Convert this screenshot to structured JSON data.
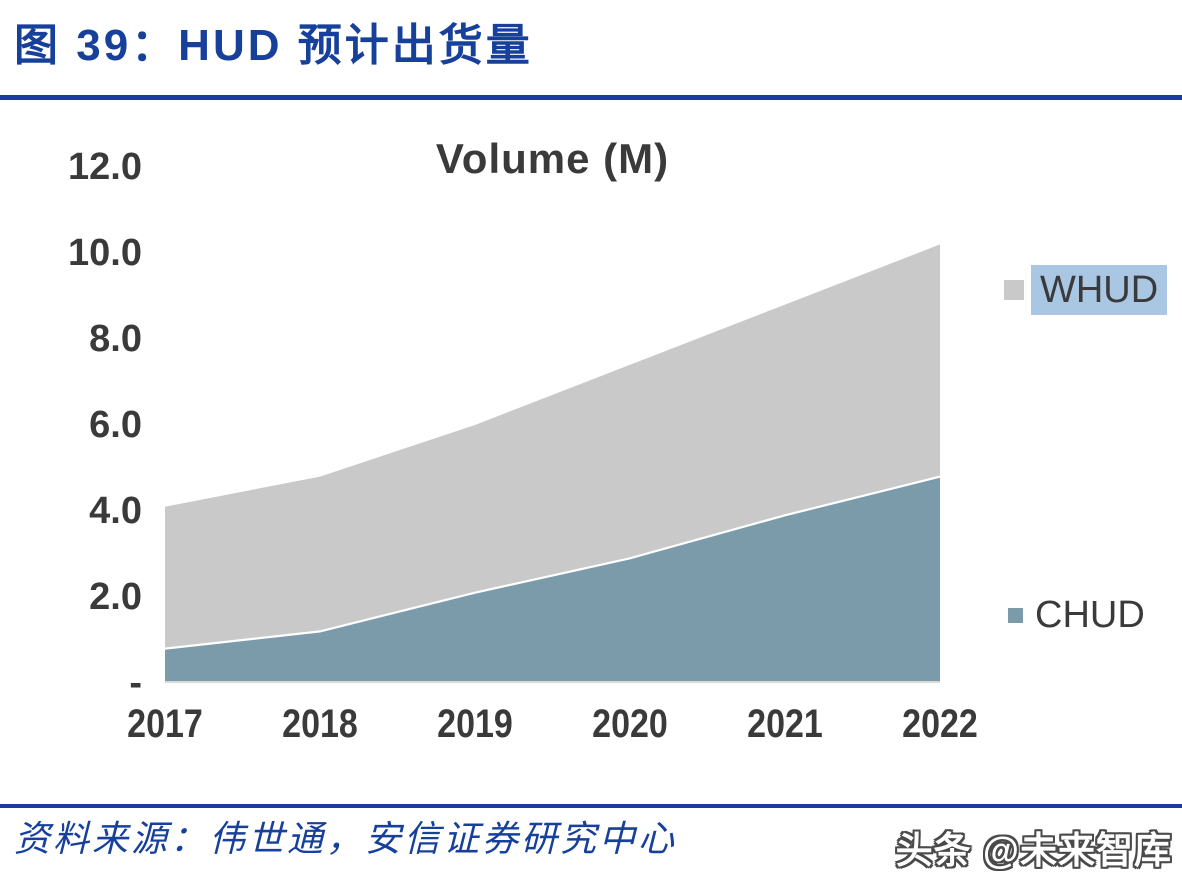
{
  "figure": {
    "title": "图 39：HUD 预计出货量",
    "source": "资料来源：伟世通，安信证券研究中心",
    "watermark": "头条 @未来智库"
  },
  "chart_data": {
    "type": "area",
    "stacked": true,
    "title": "Volume (M)",
    "categories": [
      "2017",
      "2018",
      "2019",
      "2020",
      "2021",
      "2022"
    ],
    "series": [
      {
        "name": "CHUD",
        "color": "#7b9bab",
        "values": [
          0.8,
          1.2,
          2.1,
          2.9,
          3.9,
          4.8
        ]
      },
      {
        "name": "WHUD",
        "color": "#c9c9c9",
        "values": [
          3.3,
          3.6,
          3.9,
          4.5,
          4.9,
          5.4
        ]
      }
    ],
    "stacked_totals": [
      4.1,
      4.8,
      6.0,
      7.4,
      8.8,
      10.2
    ],
    "xlabel": "",
    "ylabel": "",
    "ylim": [
      0,
      12
    ],
    "y_ticks": [
      "12.0",
      "10.0",
      "8.0",
      "6.0",
      "4.0",
      "2.0",
      "-"
    ],
    "grid": false,
    "legend_position": "right",
    "legend": [
      {
        "label": "WHUD",
        "swatch_color": "#c9c9c9",
        "highlight_color": "#a9c7e3",
        "highlighted": true
      },
      {
        "label": "CHUD",
        "swatch_color": "#7b9bab",
        "highlighted": false
      }
    ]
  },
  "colors": {
    "accent_navy": "#17409b",
    "rule_blue": "#1a3aa0",
    "chart_text": "#3a3a3a",
    "axis_line": "#d9d9d9",
    "whud_gray": "#c9c9c9",
    "chud_blue": "#7b9bab",
    "legend_highlight": "#a9c7e3",
    "boundary_white": "#ffffff"
  }
}
